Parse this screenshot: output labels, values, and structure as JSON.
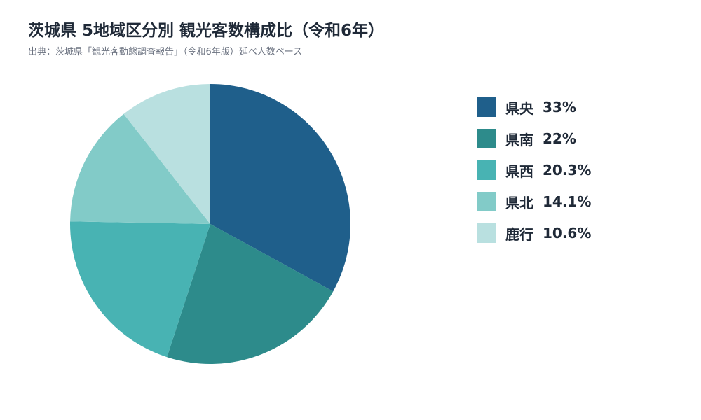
{
  "title": "茨城県 5地域区分別 観光客数構成比（令和6年）",
  "subtitle": "出典：茨城県「観光客動態調査報告」（令和6年版）延べ人数ベース",
  "chart_data": {
    "type": "pie",
    "title": "茨城県 5地域区分別 観光客数構成比（令和6年）",
    "subtitle": "出典：茨城県「観光客動態調査報告」（令和6年版）延べ人数ベース",
    "legend_position": "right",
    "start_angle_deg": 0,
    "direction": "clockwise",
    "slices": [
      {
        "label": "県央",
        "value": 33,
        "display": "33%",
        "color": "#1f5f8b"
      },
      {
        "label": "県南",
        "value": 22,
        "display": "22%",
        "color": "#2d8b8b"
      },
      {
        "label": "県西",
        "value": 20.3,
        "display": "20.3%",
        "color": "#48b3b3"
      },
      {
        "label": "県北",
        "value": 14.1,
        "display": "14.1%",
        "color": "#82cbc8"
      },
      {
        "label": "鹿行",
        "value": 10.6,
        "display": "10.6%",
        "color": "#b9e0e0"
      }
    ]
  }
}
